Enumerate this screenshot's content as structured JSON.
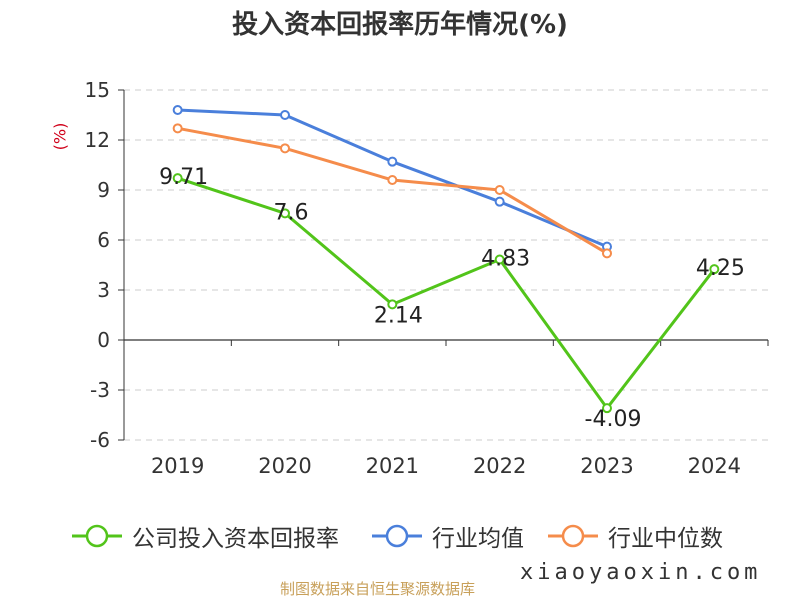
{
  "chart_data": {
    "type": "line",
    "title": "投入资本回报率历年情况(%)",
    "ylabel": "(%)",
    "categories": [
      "2019",
      "2020",
      "2021",
      "2022",
      "2023",
      "2024"
    ],
    "ylim": [
      -6,
      15
    ],
    "yticks": [
      15,
      12,
      9,
      6,
      3,
      0,
      -3,
      -6
    ],
    "grid": true,
    "legend_position": "bottom",
    "series": [
      {
        "name": "公司投入资本回报率",
        "color": "#52c41a",
        "values": [
          9.71,
          7.6,
          2.14,
          4.83,
          -4.09,
          4.25
        ],
        "labels": [
          "9.71",
          "7.6",
          "2.14",
          "4.83",
          "-4.09",
          "4.25"
        ]
      },
      {
        "name": "行业均值",
        "color": "#4a7fdb",
        "values": [
          13.8,
          13.5,
          10.7,
          8.3,
          5.6,
          null
        ]
      },
      {
        "name": "行业中位数",
        "color": "#f58c4b",
        "values": [
          12.7,
          11.5,
          9.6,
          9.0,
          5.2,
          null
        ]
      }
    ]
  },
  "footer": {
    "source": "制图数据来自恒生聚源数据库",
    "watermark": "xiaoyaoxin.com"
  }
}
